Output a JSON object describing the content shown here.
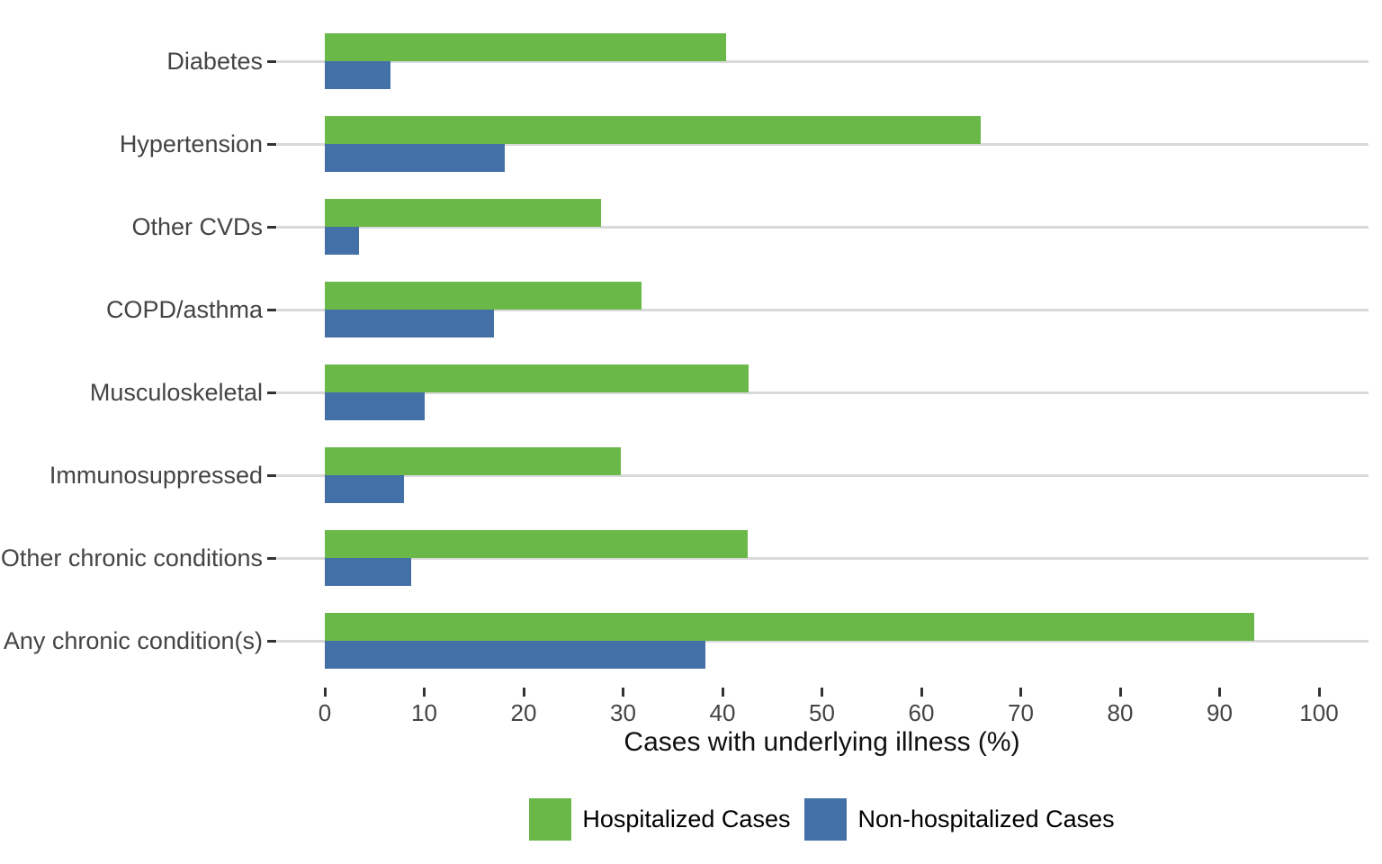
{
  "chart_data": {
    "type": "bar",
    "orientation": "horizontal",
    "title": "",
    "xlabel": "Cases with underlying illness (%)",
    "ylabel": "",
    "xlim": [
      0,
      100
    ],
    "xticks": [
      0,
      10,
      20,
      30,
      40,
      50,
      60,
      70,
      80,
      90,
      100
    ],
    "grid": "horizontal category lines only",
    "legend_position": "bottom-center",
    "background_color": "#ffffff",
    "gridline_color": "#d9d9d9",
    "axis_text_color": "#444444",
    "categories": [
      "Diabetes",
      "Hypertension",
      "Other CVDs",
      "COPD/asthma",
      "Musculoskeletal",
      "Immunosuppressed",
      "Other chronic conditions",
      "Any chronic condition(s)"
    ],
    "series": [
      {
        "name": "Hospitalized Cases",
        "color": "#6ab848",
        "values": [
          40.4,
          66.0,
          27.8,
          31.9,
          42.6,
          29.8,
          42.5,
          93.5
        ]
      },
      {
        "name": "Non-hospitalized Cases",
        "color": "#4470a8",
        "values": [
          6.6,
          18.1,
          3.4,
          17.0,
          10.0,
          8.0,
          8.7,
          38.3
        ]
      }
    ]
  },
  "legend": {
    "items": [
      {
        "label": "Hospitalized Cases",
        "color": "#6ab848"
      },
      {
        "label": "Non-hospitalized Cases",
        "color": "#4470a8"
      }
    ]
  }
}
